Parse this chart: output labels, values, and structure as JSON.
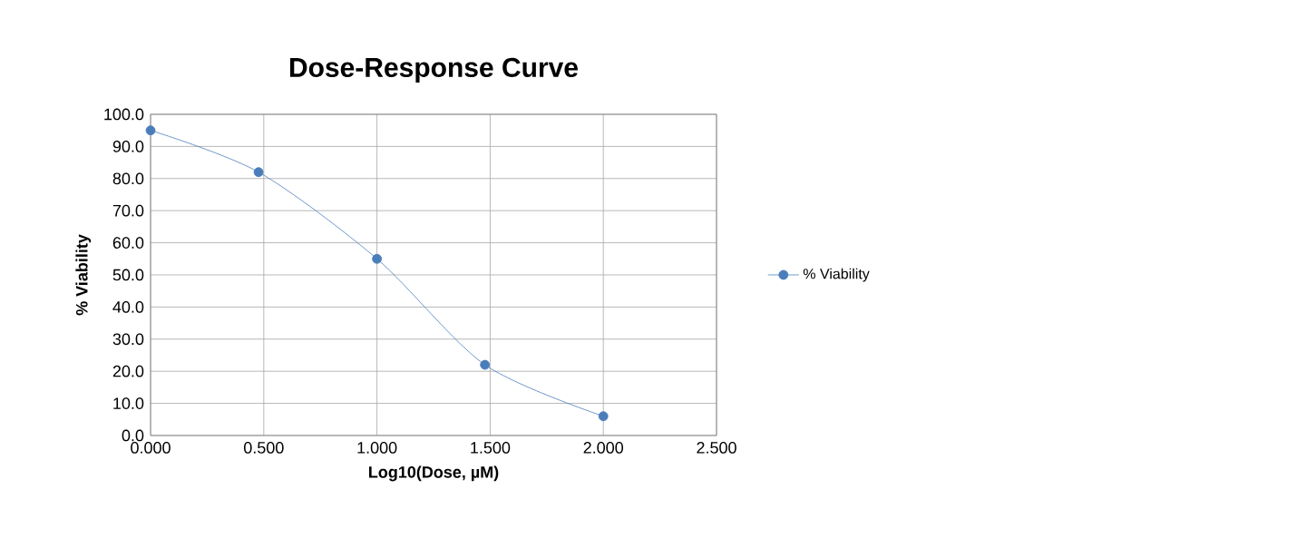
{
  "chart_data": {
    "type": "line",
    "title": "Dose-Response Curve",
    "xlabel": "Log10(Dose, µM)",
    "ylabel": "% Viability",
    "x": [
      0.0,
      0.477,
      1.0,
      1.477,
      2.0
    ],
    "series": [
      {
        "name": "% Viability",
        "color": "#4a7ebb",
        "values": [
          95,
          82,
          55,
          22,
          6
        ]
      }
    ],
    "xlim": [
      0,
      2.5
    ],
    "xticks": [
      {
        "value": 0,
        "label": "0.000"
      },
      {
        "value": 0.5,
        "label": "0.500"
      },
      {
        "value": 1,
        "label": "1.000"
      },
      {
        "value": 1.5,
        "label": "1.500"
      },
      {
        "value": 2,
        "label": "2.000"
      },
      {
        "value": 2.5,
        "label": "2.500"
      }
    ],
    "ylim": [
      0,
      100
    ],
    "yticks": [
      {
        "value": 0,
        "label": "0.0"
      },
      {
        "value": 10,
        "label": "10.0"
      },
      {
        "value": 20,
        "label": "20.0"
      },
      {
        "value": 30,
        "label": "30.0"
      },
      {
        "value": 40,
        "label": "40.0"
      },
      {
        "value": 50,
        "label": "50.0"
      },
      {
        "value": 60,
        "label": "60.0"
      },
      {
        "value": 70,
        "label": "70.0"
      },
      {
        "value": 80,
        "label": "80.0"
      },
      {
        "value": 90,
        "label": "90.0"
      },
      {
        "value": 100,
        "label": "100.0"
      }
    ],
    "grid": true,
    "legend": "right",
    "marker": "circle",
    "line_style": "solid"
  }
}
